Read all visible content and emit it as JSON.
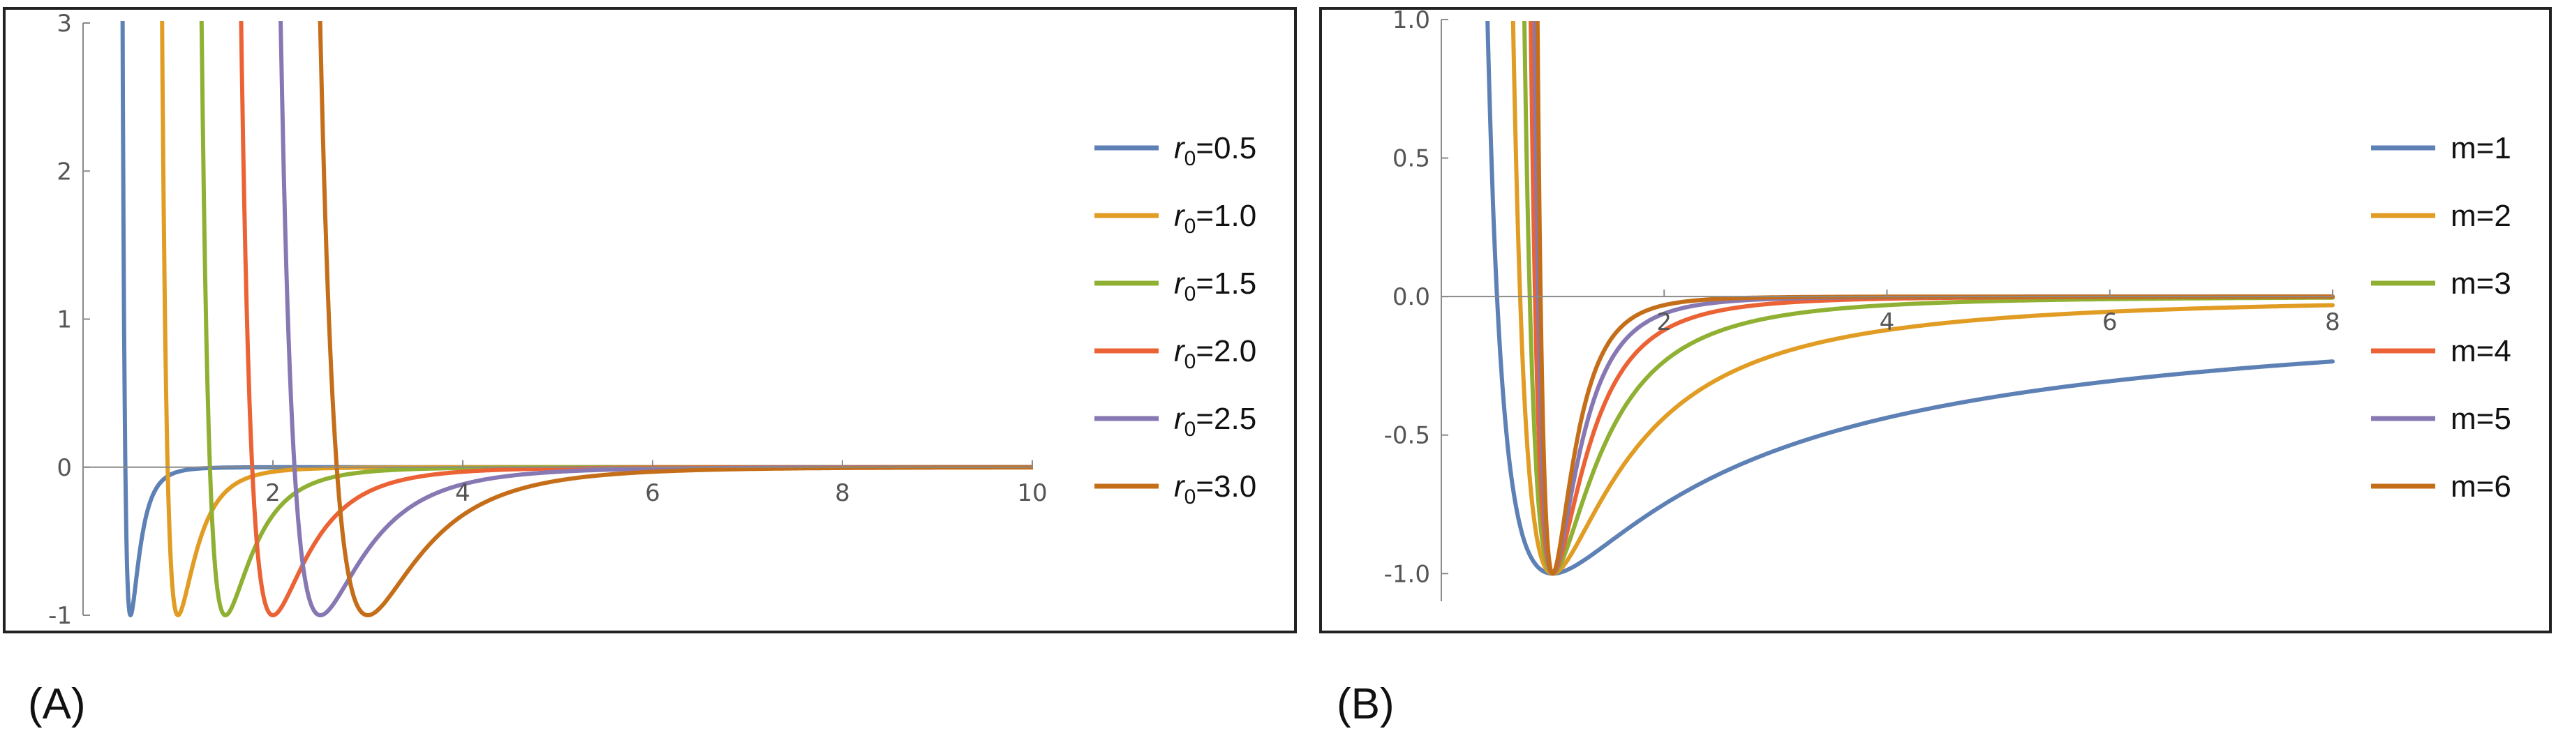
{
  "panels": [
    {
      "caption": "(A)"
    },
    {
      "caption": "(B)"
    }
  ],
  "chart_data": [
    {
      "type": "line",
      "title": "",
      "xlabel": "",
      "ylabel": "",
      "xlim": [
        0,
        10
      ],
      "ylim": [
        -1,
        3
      ],
      "x_ticks": [
        2,
        4,
        6,
        8,
        10
      ],
      "x_tick_labels": [
        "2",
        "4",
        "6",
        "8",
        "10"
      ],
      "y_ticks": [
        -1,
        0,
        1,
        2,
        3
      ],
      "y_tick_labels": [
        "-1",
        "0",
        "1",
        "2",
        "3"
      ],
      "grid": false,
      "legend_position": "right",
      "series": [
        {
          "name_base": "r",
          "name_sub": "0",
          "name_value": "=0.5",
          "color": "#5E81B5",
          "r0": 0.5
        },
        {
          "name_base": "r",
          "name_sub": "0",
          "name_value": "=1.0",
          "color": "#E19C24",
          "r0": 1.0
        },
        {
          "name_base": "r",
          "name_sub": "0",
          "name_value": "=1.5",
          "color": "#8FB032",
          "r0": 1.5
        },
        {
          "name_base": "r",
          "name_sub": "0",
          "name_value": "=2.0",
          "color": "#EB6235",
          "r0": 2.0
        },
        {
          "name_base": "r",
          "name_sub": "0",
          "name_value": "=2.5",
          "color": "#8778B3",
          "r0": 2.5
        },
        {
          "name_base": "r",
          "name_sub": "0",
          "name_value": "=3.0",
          "color": "#C56E1A",
          "r0": 3.0
        }
      ]
    },
    {
      "type": "line",
      "title": "",
      "xlabel": "",
      "ylabel": "",
      "xlim": [
        0,
        8
      ],
      "ylim": [
        -1.1,
        1.0
      ],
      "x_ticks": [
        2,
        4,
        6,
        8
      ],
      "x_tick_labels": [
        "2",
        "4",
        "6",
        "8"
      ],
      "y_ticks": [
        -1.0,
        -0.5,
        0.0,
        0.5,
        1.0
      ],
      "y_tick_labels": [
        "-1.0",
        "-0.5",
        "0.0",
        "0.5",
        "1.0"
      ],
      "grid": false,
      "legend_position": "right",
      "series": [
        {
          "name": "m=1",
          "color": "#5E81B5",
          "m": 1
        },
        {
          "name": "m=2",
          "color": "#E19C24",
          "m": 2
        },
        {
          "name": "m=3",
          "color": "#8FB032",
          "m": 3
        },
        {
          "name": "m=4",
          "color": "#EB6235",
          "m": 4
        },
        {
          "name": "m=5",
          "color": "#8778B3",
          "m": 5
        },
        {
          "name": "m=6",
          "color": "#C56E1A",
          "m": 6
        }
      ]
    }
  ]
}
